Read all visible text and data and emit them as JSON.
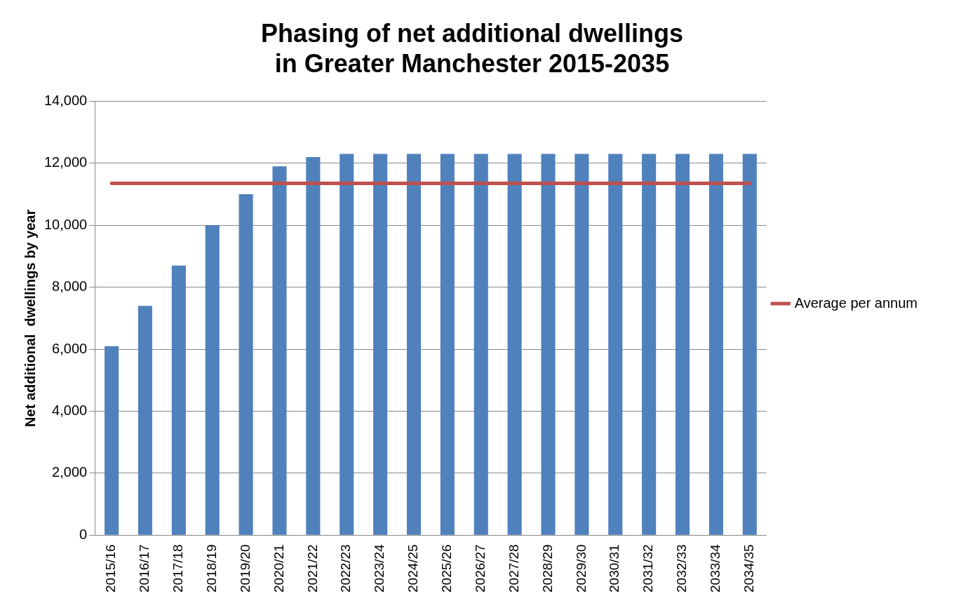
{
  "chart_data": {
    "type": "bar",
    "title": [
      "Phasing of net additional dwellings",
      "in Greater Manchester 2015-2035"
    ],
    "ylabel": "Net additional  dwellings by year",
    "categories": [
      "2015/16",
      "2016/17",
      "2017/18",
      "2018/19",
      "2019/20",
      "2020/21",
      "2021/22",
      "2022/23",
      "2023/24",
      "2024/25",
      "2025/26",
      "2026/27",
      "2027/28",
      "2028/29",
      "2029/30",
      "2030/31",
      "2031/32",
      "2032/33",
      "2033/34",
      "2034/35"
    ],
    "series": [
      {
        "color": "#4f81bd",
        "values": [
          6100,
          7400,
          8700,
          10000,
          11000,
          11900,
          12200,
          12300,
          12300,
          12300,
          12300,
          12300,
          12300,
          12300,
          12300,
          12300,
          12300,
          12300,
          12300,
          12300
        ]
      },
      {
        "type": "line",
        "name": "Average per annum",
        "color": "#c0504d",
        "values": [
          11350,
          11350,
          11350,
          11350,
          11350,
          11350,
          11350,
          11350,
          11350,
          11350,
          11350,
          11350,
          11350,
          11350,
          11350,
          11350,
          11350,
          11350,
          11350,
          11350
        ]
      }
    ],
    "ylim": [
      0,
      14000
    ],
    "yticks": [
      0,
      {
        "value": 2000,
        "label": "2,000"
      },
      {
        "value": 4000,
        "label": "4,000"
      },
      {
        "value": 6000,
        "label": "6,000"
      },
      {
        "value": 8000,
        "label": "8,000"
      },
      {
        "value": 10000,
        "label": "10,000"
      },
      {
        "value": 12000,
        "label": "12,000"
      },
      {
        "value": 14000,
        "label": "14,000"
      }
    ],
    "grid": "y",
    "legend": "right",
    "marker": "none"
  }
}
